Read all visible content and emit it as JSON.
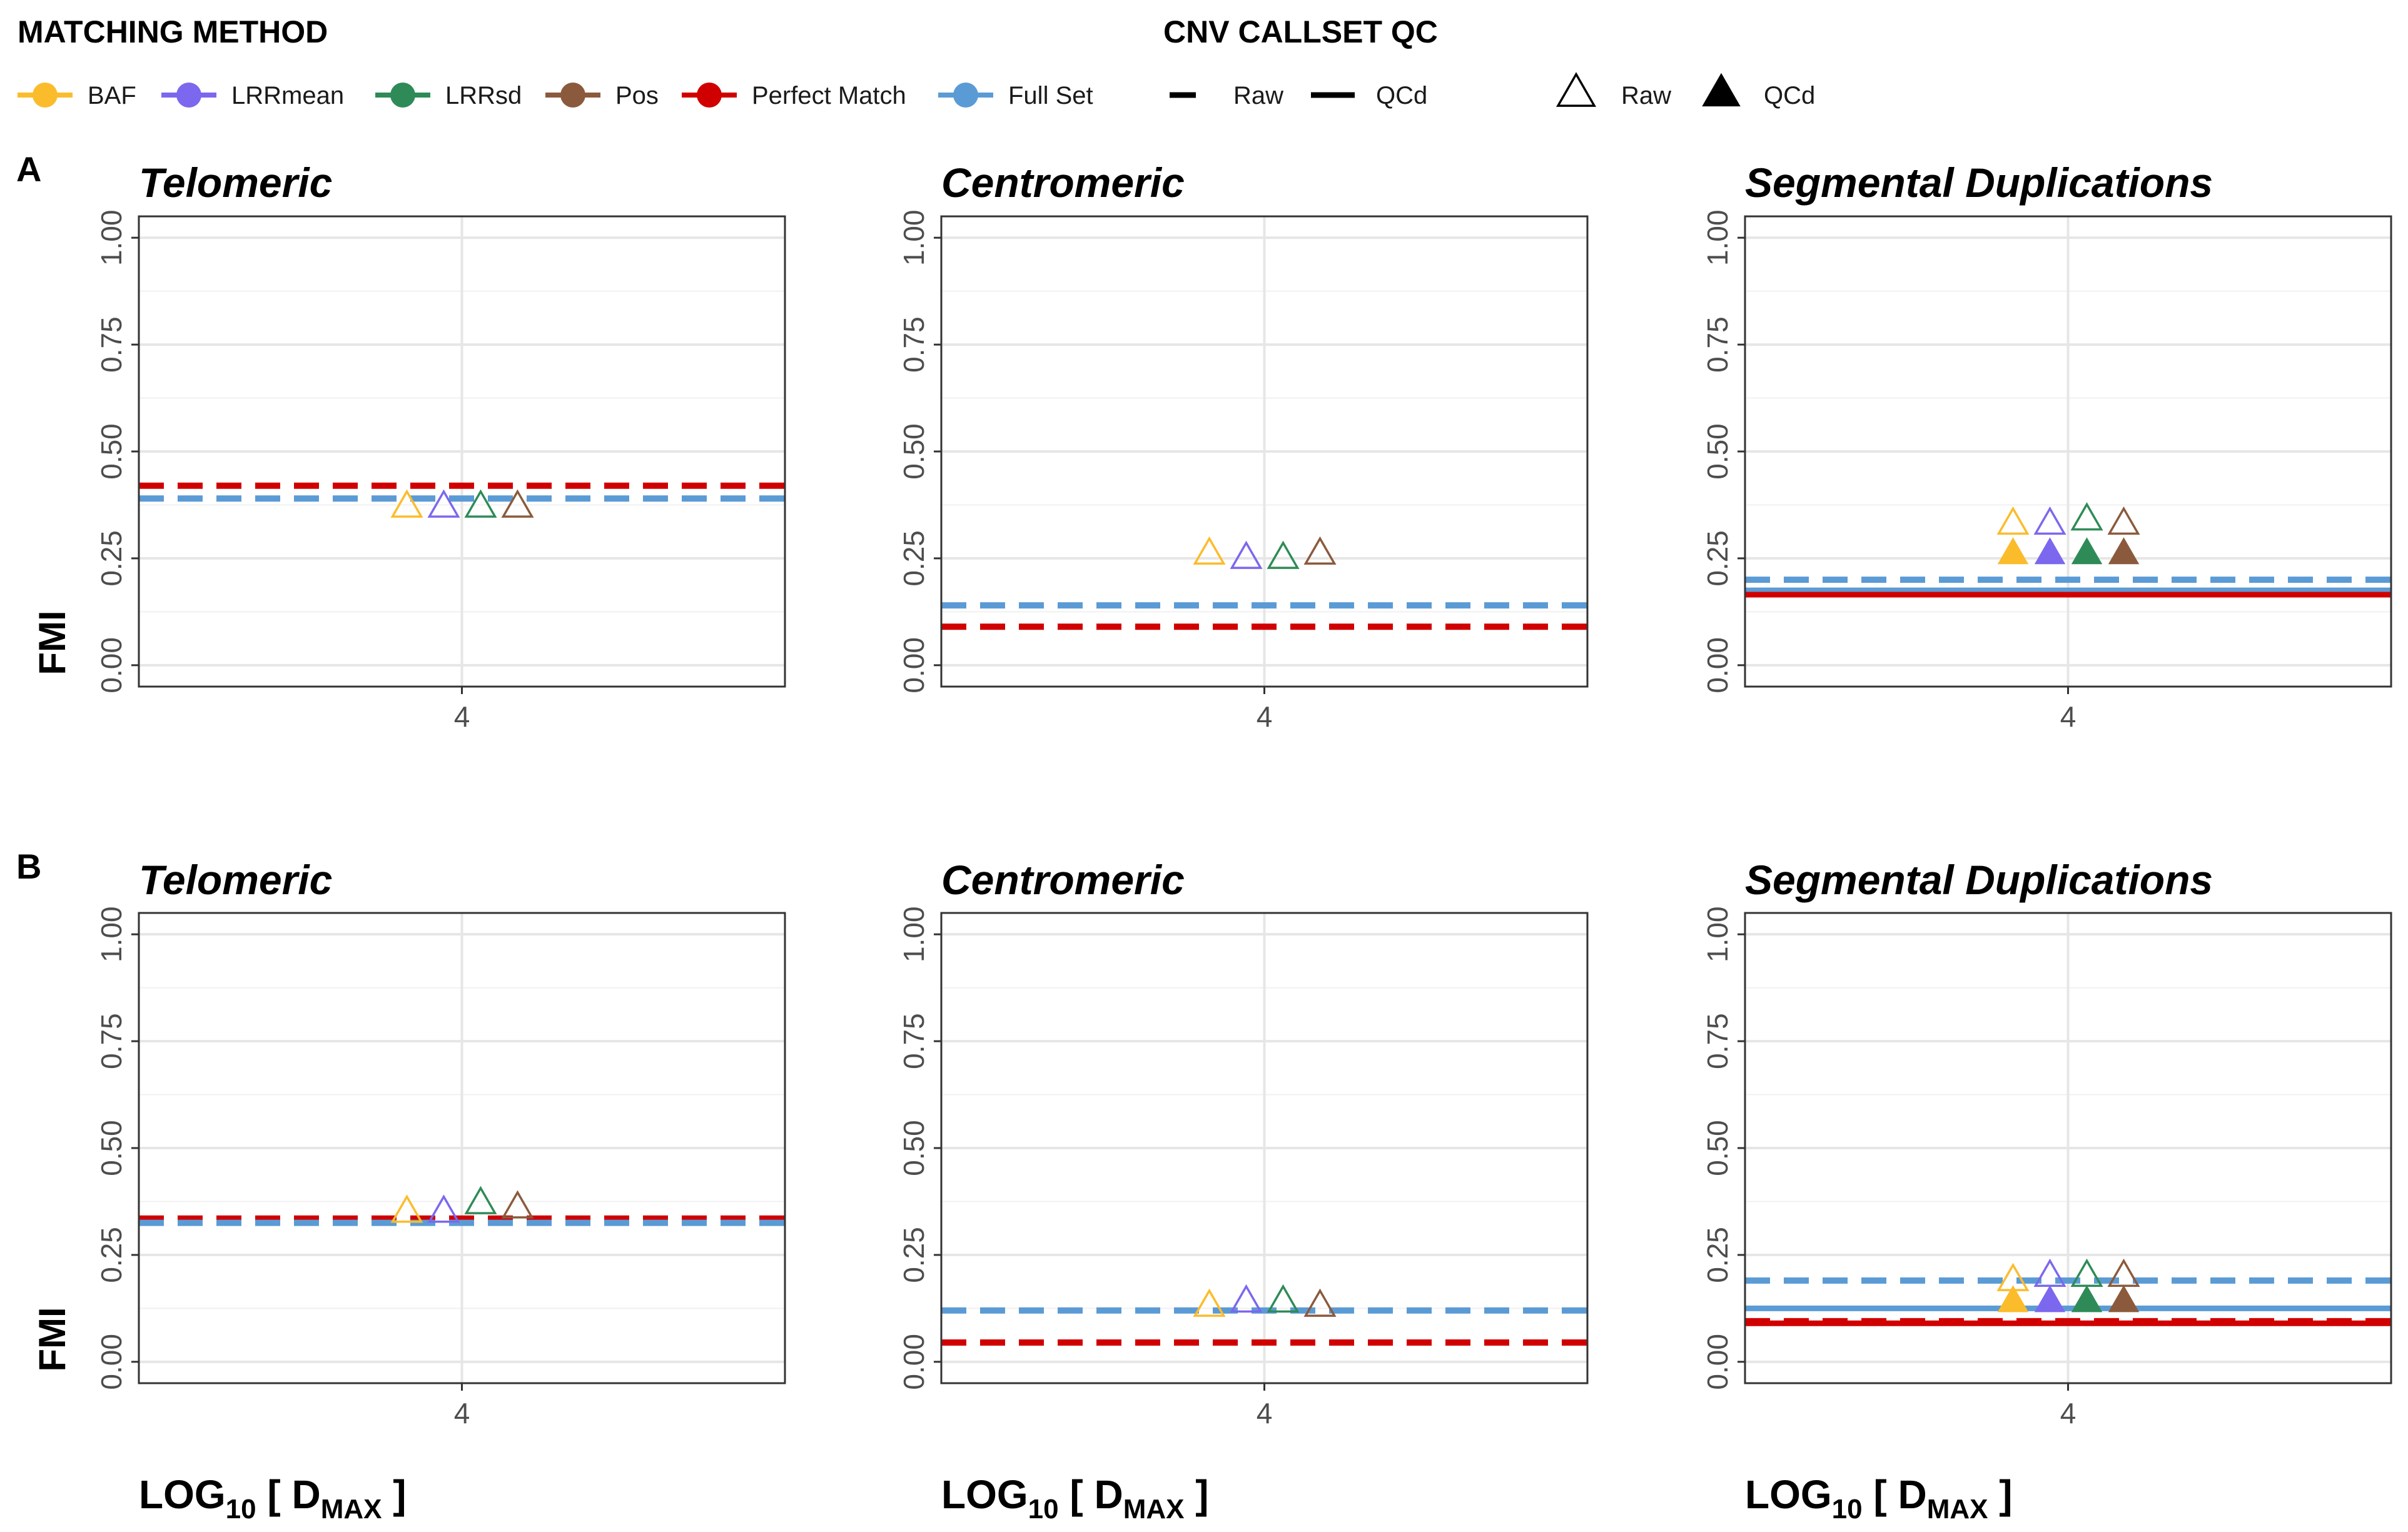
{
  "legend": {
    "matching_method": {
      "title": "MATCHING METHOD",
      "items": [
        {
          "label": "BAF",
          "color": "#FBBC2C"
        },
        {
          "label": "LRRmean",
          "color": "#7B68EE"
        },
        {
          "label": "LRRsd",
          "color": "#2E8B57"
        },
        {
          "label": "Pos",
          "color": "#8B5A3C"
        },
        {
          "label": "Perfect Match",
          "color": "#D10000"
        },
        {
          "label": "Full Set",
          "color": "#5B9BD5"
        }
      ]
    },
    "callset_qc": {
      "title": "CNV CALLSET QC",
      "line_items": [
        {
          "label": "Raw",
          "style": "dashed"
        },
        {
          "label": "QCd",
          "style": "solid"
        }
      ],
      "shape_items": [
        {
          "label": "Raw",
          "shape": "open-triangle"
        },
        {
          "label": "QCd",
          "shape": "filled-triangle"
        }
      ]
    }
  },
  "rows": [
    {
      "label": "A"
    },
    {
      "label": "B"
    }
  ],
  "axis": {
    "ylabel": "FMI",
    "xlabel_main": "LOG",
    "xlabel_sub": "10",
    "xlabel_bracket_open": " [ D",
    "xlabel_dsub": "MAX",
    "xlabel_bracket_close": " ]",
    "y_ticks": [
      "0.00",
      "0.25",
      "0.50",
      "0.75",
      "1.00"
    ],
    "x_tick": "4"
  },
  "chart_data": [
    {
      "type": "scatter",
      "row": "A",
      "title": "Telomeric",
      "x_tick_label": "4",
      "ylim": [
        -0.05,
        1.05
      ],
      "ylabel": "FMI",
      "reference_lines": [
        {
          "series": "Perfect Match",
          "qc": "Raw",
          "y": 0.42
        },
        {
          "series": "Full Set",
          "qc": "Raw",
          "y": 0.39
        }
      ],
      "points": [
        {
          "series": "BAF",
          "qc": "Raw",
          "y": 0.37
        },
        {
          "series": "LRRmean",
          "qc": "Raw",
          "y": 0.37
        },
        {
          "series": "LRRsd",
          "qc": "Raw",
          "y": 0.37
        },
        {
          "series": "Pos",
          "qc": "Raw",
          "y": 0.37
        }
      ]
    },
    {
      "type": "scatter",
      "row": "A",
      "title": "Centromeric",
      "x_tick_label": "4",
      "ylim": [
        -0.05,
        1.05
      ],
      "ylabel": "FMI",
      "reference_lines": [
        {
          "series": "Full Set",
          "qc": "Raw",
          "y": 0.14
        },
        {
          "series": "Perfect Match",
          "qc": "Raw",
          "y": 0.09
        }
      ],
      "points": [
        {
          "series": "BAF",
          "qc": "Raw",
          "y": 0.26
        },
        {
          "series": "LRRmean",
          "qc": "Raw",
          "y": 0.25
        },
        {
          "series": "LRRsd",
          "qc": "Raw",
          "y": 0.25
        },
        {
          "series": "Pos",
          "qc": "Raw",
          "y": 0.26
        }
      ]
    },
    {
      "type": "scatter",
      "row": "A",
      "title": "Segmental Duplications",
      "x_tick_label": "4",
      "ylim": [
        -0.05,
        1.05
      ],
      "ylabel": "FMI",
      "reference_lines": [
        {
          "series": "Full Set",
          "qc": "Raw",
          "y": 0.2
        },
        {
          "series": "Full Set",
          "qc": "QCd",
          "y": 0.175
        },
        {
          "series": "Perfect Match",
          "qc": "QCd",
          "y": 0.165
        }
      ],
      "points": [
        {
          "series": "BAF",
          "qc": "Raw",
          "y": 0.33
        },
        {
          "series": "LRRmean",
          "qc": "Raw",
          "y": 0.33
        },
        {
          "series": "LRRsd",
          "qc": "Raw",
          "y": 0.34
        },
        {
          "series": "Pos",
          "qc": "Raw",
          "y": 0.33
        },
        {
          "series": "BAF",
          "qc": "QCd",
          "y": 0.26
        },
        {
          "series": "LRRmean",
          "qc": "QCd",
          "y": 0.26
        },
        {
          "series": "LRRsd",
          "qc": "QCd",
          "y": 0.26
        },
        {
          "series": "Pos",
          "qc": "QCd",
          "y": 0.26
        }
      ]
    },
    {
      "type": "scatter",
      "row": "B",
      "title": "Telomeric",
      "x_tick_label": "4",
      "ylim": [
        -0.05,
        1.05
      ],
      "ylabel": "FMI",
      "reference_lines": [
        {
          "series": "Perfect Match",
          "qc": "Raw",
          "y": 0.335
        },
        {
          "series": "Full Set",
          "qc": "Raw",
          "y": 0.325
        }
      ],
      "points": [
        {
          "series": "BAF",
          "qc": "Raw",
          "y": 0.35
        },
        {
          "series": "LRRmean",
          "qc": "Raw",
          "y": 0.35
        },
        {
          "series": "LRRsd",
          "qc": "Raw",
          "y": 0.37
        },
        {
          "series": "Pos",
          "qc": "Raw",
          "y": 0.36
        }
      ]
    },
    {
      "type": "scatter",
      "row": "B",
      "title": "Centromeric",
      "x_tick_label": "4",
      "ylim": [
        -0.05,
        1.05
      ],
      "ylabel": "FMI",
      "reference_lines": [
        {
          "series": "Full Set",
          "qc": "Raw",
          "y": 0.12
        },
        {
          "series": "Perfect Match",
          "qc": "Raw",
          "y": 0.045
        }
      ],
      "points": [
        {
          "series": "BAF",
          "qc": "Raw",
          "y": 0.13
        },
        {
          "series": "LRRmean",
          "qc": "Raw",
          "y": 0.14
        },
        {
          "series": "LRRsd",
          "qc": "Raw",
          "y": 0.14
        },
        {
          "series": "Pos",
          "qc": "Raw",
          "y": 0.13
        }
      ]
    },
    {
      "type": "scatter",
      "row": "B",
      "title": "Segmental Duplications",
      "x_tick_label": "4",
      "ylim": [
        -0.05,
        1.05
      ],
      "ylabel": "FMI",
      "reference_lines": [
        {
          "series": "Full Set",
          "qc": "Raw",
          "y": 0.19
        },
        {
          "series": "Full Set",
          "qc": "QCd",
          "y": 0.125
        },
        {
          "series": "Perfect Match",
          "qc": "Raw",
          "y": 0.095
        },
        {
          "series": "Perfect Match",
          "qc": "QCd",
          "y": 0.09
        }
      ],
      "points": [
        {
          "series": "BAF",
          "qc": "Raw",
          "y": 0.19
        },
        {
          "series": "LRRmean",
          "qc": "Raw",
          "y": 0.2
        },
        {
          "series": "LRRsd",
          "qc": "Raw",
          "y": 0.2
        },
        {
          "series": "Pos",
          "qc": "Raw",
          "y": 0.2
        },
        {
          "series": "BAF",
          "qc": "QCd",
          "y": 0.14
        },
        {
          "series": "LRRmean",
          "qc": "QCd",
          "y": 0.14
        },
        {
          "series": "LRRsd",
          "qc": "QCd",
          "y": 0.14
        },
        {
          "series": "Pos",
          "qc": "QCd",
          "y": 0.14
        }
      ]
    }
  ]
}
